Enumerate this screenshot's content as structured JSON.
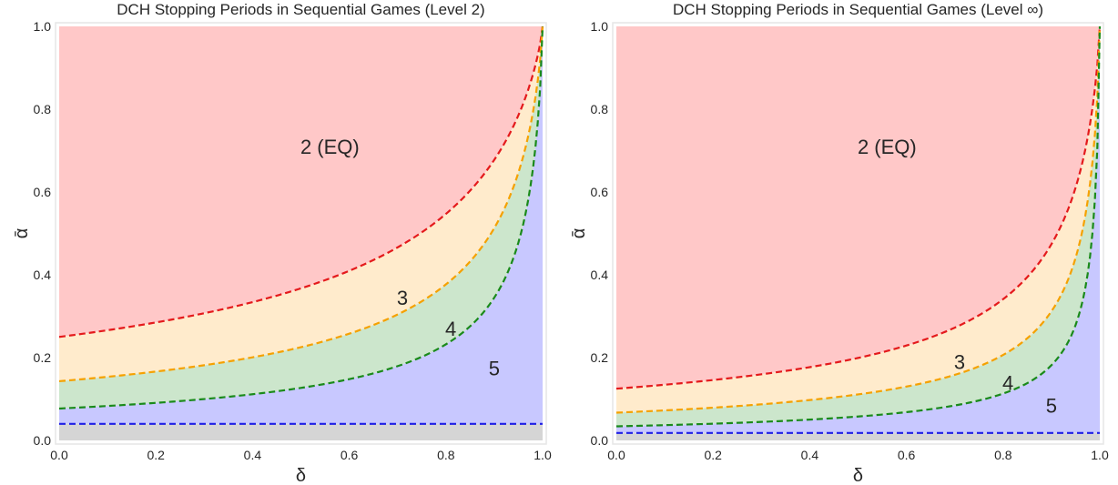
{
  "chart_data": [
    {
      "type": "area",
      "title": "DCH Stopping Periods in Sequential Games (Level 2)",
      "xlabel": "δ",
      "ylabel": "ᾱ",
      "xlim": [
        0,
        1
      ],
      "ylim": [
        0,
        1
      ],
      "xticks": [
        "0.0",
        "0.2",
        "0.4",
        "0.6",
        "0.8",
        "1.0"
      ],
      "yticks": [
        "0.0",
        "0.2",
        "0.4",
        "0.6",
        "0.8",
        "1.0"
      ],
      "grid": false,
      "boundaries": [
        {
          "color": "#e41a1c",
          "style": "dashed",
          "base_at_0": 0.25,
          "x": [
            0,
            0.2,
            0.4,
            0.6,
            0.8,
            0.9,
            1.0
          ],
          "y": [
            0.25,
            0.27,
            0.31,
            0.38,
            0.5,
            0.65,
            1.0
          ]
        },
        {
          "color": "#f5a100",
          "style": "dashed",
          "base_at_0": 0.143,
          "x": [
            0,
            0.2,
            0.4,
            0.6,
            0.8,
            0.9,
            1.0
          ],
          "y": [
            0.143,
            0.16,
            0.19,
            0.24,
            0.35,
            0.5,
            1.0
          ]
        },
        {
          "color": "#1a8a1a",
          "style": "dashed",
          "base_at_0": 0.077,
          "x": [
            0,
            0.2,
            0.4,
            0.6,
            0.8,
            0.9,
            1.0
          ],
          "y": [
            0.077,
            0.09,
            0.11,
            0.15,
            0.23,
            0.36,
            1.0
          ]
        },
        {
          "color": "#1f1fe6",
          "style": "dashed",
          "x": [
            0,
            1.0
          ],
          "y": [
            0.04,
            0.04
          ]
        }
      ],
      "region_fills": [
        "#ffc8c8",
        "#ffebcc",
        "#cce6cc",
        "#c8c8ff",
        "#d5d5d5"
      ],
      "region_labels": [
        {
          "text": "2 (EQ)",
          "x": 0.56,
          "y": 0.71
        },
        {
          "text": "3",
          "x": 0.71,
          "y": 0.345
        },
        {
          "text": "4",
          "x": 0.81,
          "y": 0.27
        },
        {
          "text": "5",
          "x": 0.9,
          "y": 0.175
        }
      ]
    },
    {
      "type": "area",
      "title": "DCH Stopping Periods in Sequential Games (Level ∞)",
      "xlabel": "δ",
      "ylabel": "ᾱ",
      "xlim": [
        0,
        1
      ],
      "ylim": [
        0,
        1
      ],
      "xticks": [
        "0.0",
        "0.2",
        "0.4",
        "0.6",
        "0.8",
        "1.0"
      ],
      "yticks": [
        "0.0",
        "0.2",
        "0.4",
        "0.6",
        "0.8",
        "1.0"
      ],
      "grid": false,
      "boundaries": [
        {
          "color": "#e41a1c",
          "style": "dashed",
          "base_at_0": 0.125,
          "x": [
            0,
            0.2,
            0.4,
            0.6,
            0.8,
            0.9,
            1.0
          ],
          "y": [
            0.125,
            0.135,
            0.155,
            0.19,
            0.26,
            0.38,
            1.0
          ]
        },
        {
          "color": "#f5a100",
          "style": "dashed",
          "base_at_0": 0.067,
          "x": [
            0,
            0.2,
            0.4,
            0.6,
            0.8,
            0.9,
            1.0
          ],
          "y": [
            0.067,
            0.075,
            0.09,
            0.115,
            0.17,
            0.26,
            1.0
          ]
        },
        {
          "color": "#1a8a1a",
          "style": "dashed",
          "base_at_0": 0.034,
          "x": [
            0,
            0.2,
            0.4,
            0.6,
            0.8,
            0.9,
            1.0
          ],
          "y": [
            0.034,
            0.04,
            0.05,
            0.065,
            0.1,
            0.17,
            1.0
          ]
        },
        {
          "color": "#1f1fe6",
          "style": "dashed",
          "x": [
            0,
            1.0
          ],
          "y": [
            0.018,
            0.018
          ]
        }
      ],
      "region_fills": [
        "#ffc8c8",
        "#ffebcc",
        "#cce6cc",
        "#c8c8ff",
        "#d5d5d5"
      ],
      "region_labels": [
        {
          "text": "2 (EQ)",
          "x": 0.56,
          "y": 0.71
        },
        {
          "text": "3",
          "x": 0.71,
          "y": 0.19
        },
        {
          "text": "4",
          "x": 0.81,
          "y": 0.14
        },
        {
          "text": "5",
          "x": 0.9,
          "y": 0.085
        }
      ]
    }
  ]
}
